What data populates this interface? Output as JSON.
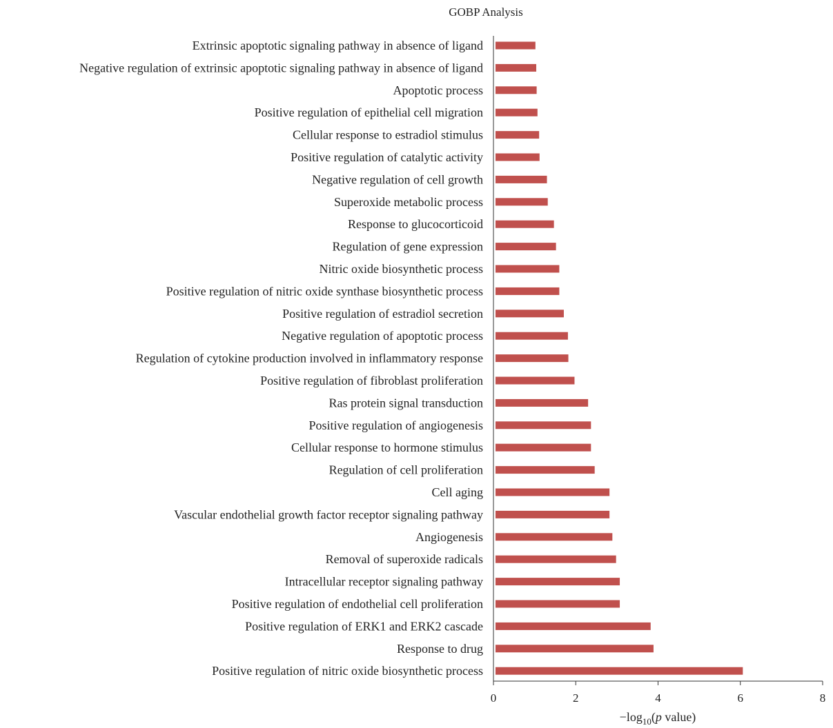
{
  "chart_data": {
    "type": "bar",
    "orientation": "horizontal",
    "title": "GOBP Analysis",
    "xlabel": "−log10(p value)",
    "xlabel_parts": {
      "prefix": "−log",
      "sub": "10",
      "open": "(",
      "italic": "p",
      "rest": " value)"
    },
    "ylabel": "",
    "xlim": [
      0,
      8
    ],
    "xticks": [
      "0",
      "2",
      "4",
      "6",
      "8"
    ],
    "grid": false,
    "legend": "none",
    "bar_color": "#c0504d",
    "categories": [
      "Extrinsic apoptotic signaling pathway in absence of ligand",
      "Negative regulation of extrinsic apoptotic signaling pathway in absence of ligand",
      "Apoptotic process",
      "Positive regulation of epithelial cell migration",
      "Cellular response to estradiol stimulus",
      "Positive regulation of catalytic activity",
      "Negative regulation of cell growth",
      "Superoxide metabolic process",
      "Response to glucocorticoid",
      "Regulation of gene expression",
      "Nitric oxide biosynthetic process",
      "Positive regulation of nitric oxide synthase biosynthetic process",
      "Positive regulation of estradiol secretion",
      "Negative regulation of apoptotic process",
      "Regulation of cytokine production involved in inflammatory response",
      "Positive regulation of fibroblast proliferation",
      "Ras protein signal transduction",
      "Positive regulation of angiogenesis",
      "Cellular response to hormone stimulus",
      "Regulation of cell proliferation",
      "Cell aging",
      "Vascular endothelial growth factor receptor signaling pathway",
      "Angiogenesis",
      "Removal of superoxide radicals",
      "Intracellular receptor signaling pathway",
      "Positive regulation of endothelial cell proliferation",
      "Positive regulation of ERK1 and ERK2 cascade",
      "Response to drug",
      "Positive regulation of nitric oxide biosynthetic process"
    ],
    "values": [
      1.02,
      1.04,
      1.05,
      1.07,
      1.11,
      1.12,
      1.3,
      1.32,
      1.47,
      1.52,
      1.6,
      1.6,
      1.71,
      1.81,
      1.82,
      1.97,
      2.3,
      2.37,
      2.37,
      2.46,
      2.82,
      2.82,
      2.89,
      2.98,
      3.07,
      3.07,
      3.82,
      3.89,
      6.06
    ]
  }
}
